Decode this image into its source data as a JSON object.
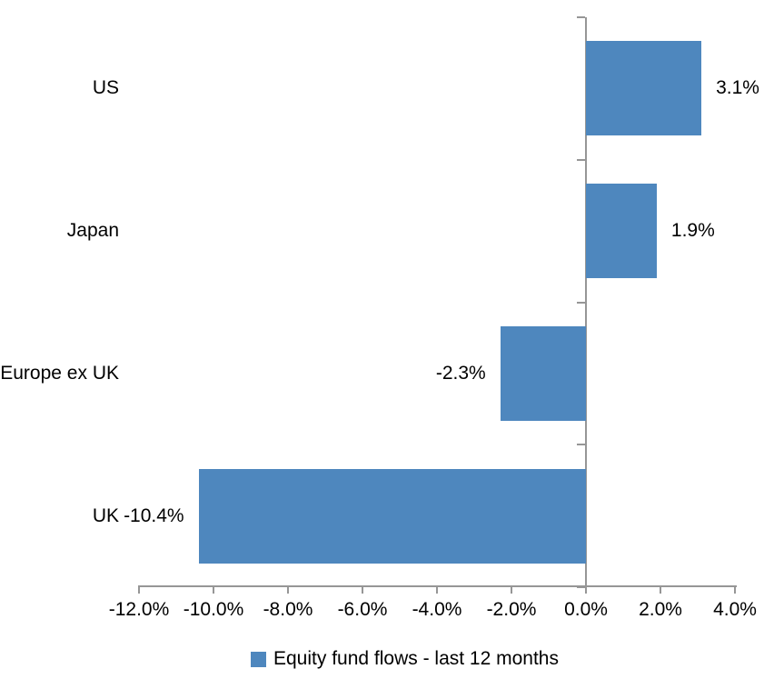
{
  "chart_data": {
    "type": "bar",
    "orientation": "horizontal",
    "categories": [
      "US",
      "Japan",
      "Europe ex UK",
      "UK"
    ],
    "values": [
      3.1,
      1.9,
      -2.3,
      -10.4
    ],
    "value_labels": [
      "3.1%",
      "1.9%",
      "-2.3%",
      "-10.4%"
    ],
    "x_ticks": [
      -12,
      -10,
      -8,
      -6,
      -4,
      -2,
      0,
      2,
      4
    ],
    "x_tick_labels": [
      "-12.0%",
      "-10.0%",
      "-8.0%",
      "-6.0%",
      "-4.0%",
      "-2.0%",
      "0.0%",
      "2.0%",
      "4.0%"
    ],
    "xlim": [
      -12,
      4
    ],
    "grid": "off",
    "legend_position": "bottom",
    "legend_label": "Equity fund flows - last 12 months",
    "bar_color": "#4E87BE",
    "axis_color": "#969696",
    "text_color": "#000000"
  }
}
